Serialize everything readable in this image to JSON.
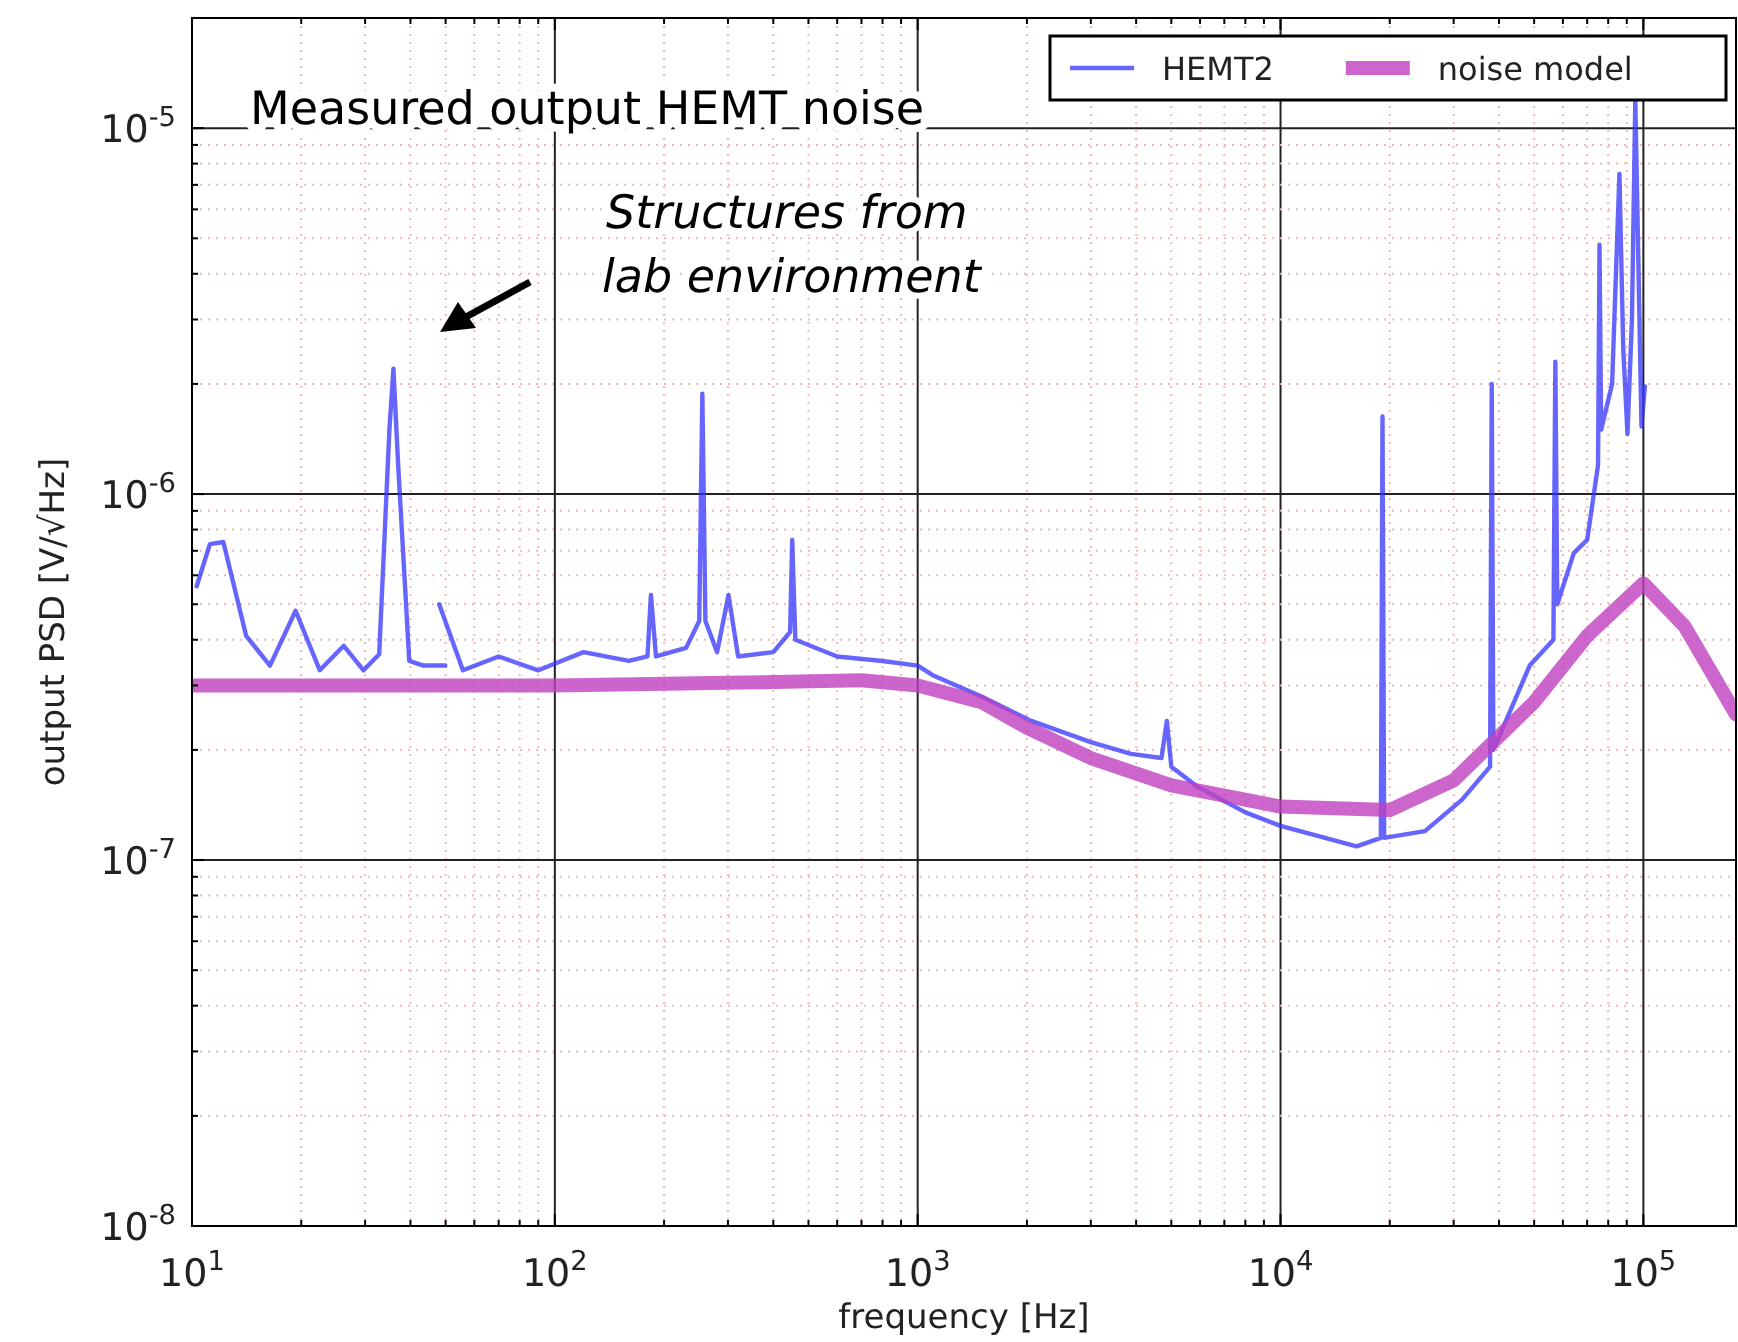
{
  "chart_data": {
    "type": "line",
    "xlabel": "frequency [Hz]",
    "ylabel": "output PSD [V/√Hz]",
    "log": "xy",
    "grid": true,
    "legend": "top right",
    "xlim": [
      10,
      180000
    ],
    "ylim": [
      1e-08,
      2e-05
    ],
    "xticks": [
      {
        "value": 10,
        "label": "10$^{1}$"
      },
      {
        "value": 20,
        "label": null
      },
      {
        "value": 30,
        "label": null
      },
      {
        "value": 40,
        "label": null
      },
      {
        "value": 50,
        "label": null
      },
      {
        "value": 60,
        "label": null
      },
      {
        "value": 70,
        "label": null
      },
      {
        "value": 80,
        "label": null
      },
      {
        "value": 90,
        "label": null
      },
      {
        "value": 100,
        "label": "10$^{2}$"
      },
      {
        "value": 200,
        "label": null
      },
      {
        "value": 300,
        "label": null
      },
      {
        "value": 400,
        "label": null
      },
      {
        "value": 500,
        "label": null
      },
      {
        "value": 600,
        "label": null
      },
      {
        "value": 700,
        "label": null
      },
      {
        "value": 800,
        "label": null
      },
      {
        "value": 900,
        "label": null
      },
      {
        "value": 1000,
        "label": "10$^{3}$"
      },
      {
        "value": 2000,
        "label": null
      },
      {
        "value": 3000,
        "label": null
      },
      {
        "value": 4000,
        "label": null
      },
      {
        "value": 5000,
        "label": null
      },
      {
        "value": 6000,
        "label": null
      },
      {
        "value": 7000,
        "label": null
      },
      {
        "value": 8000,
        "label": null
      },
      {
        "value": 9000,
        "label": null
      },
      {
        "value": 10000,
        "label": "10$^{4}$"
      },
      {
        "value": 20000,
        "label": null
      },
      {
        "value": 30000,
        "label": null
      },
      {
        "value": 40000,
        "label": null
      },
      {
        "value": 50000,
        "label": null
      },
      {
        "value": 60000,
        "label": null
      },
      {
        "value": 70000,
        "label": null
      },
      {
        "value": 80000,
        "label": null
      },
      {
        "value": 90000,
        "label": null
      },
      {
        "value": 100000,
        "label": "10$^{5}$"
      }
    ],
    "yticks": [
      {
        "value": 1e-08,
        "label": "10$^{-8}$"
      },
      {
        "value": 2e-08,
        "label": null
      },
      {
        "value": 3e-08,
        "label": null
      },
      {
        "value": 4e-08,
        "label": null
      },
      {
        "value": 5e-08,
        "label": null
      },
      {
        "value": 6e-08,
        "label": null
      },
      {
        "value": 7e-08,
        "label": null
      },
      {
        "value": 8e-08,
        "label": null
      },
      {
        "value": 9e-08,
        "label": null
      },
      {
        "value": 1e-07,
        "label": "10$^{-7}$"
      },
      {
        "value": 2e-07,
        "label": null
      },
      {
        "value": 3e-07,
        "label": null
      },
      {
        "value": 4e-07,
        "label": null
      },
      {
        "value": 5e-07,
        "label": null
      },
      {
        "value": 6e-07,
        "label": null
      },
      {
        "value": 7e-07,
        "label": null
      },
      {
        "value": 8e-07,
        "label": null
      },
      {
        "value": 9e-07,
        "label": null
      },
      {
        "value": 1e-06,
        "label": "10$^{-6}$"
      },
      {
        "value": 2e-06,
        "label": null
      },
      {
        "value": 3e-06,
        "label": null
      },
      {
        "value": 4e-06,
        "label": null
      },
      {
        "value": 5e-06,
        "label": null
      },
      {
        "value": 6e-06,
        "label": null
      },
      {
        "value": 7e-06,
        "label": null
      },
      {
        "value": 8e-06,
        "label": null
      },
      {
        "value": 9e-06,
        "label": null
      },
      {
        "value": 1e-05,
        "label": "10$^{-5}$"
      }
    ],
    "annotations": [
      "Measured output HEMT noise",
      "Structures from\nlab environment"
    ],
    "series": [
      {
        "name": "HEMT2",
        "color": "#3333ff",
        "x": [
          10.3,
          11.2,
          12.2,
          14.1,
          16.4,
          19.3,
          22.5,
          26.2,
          29.7,
          32.8,
          35,
          35.9,
          37,
          39.7,
          43.4,
          49.9,
          49,
          48,
          55.8,
          70,
          90,
          120,
          160,
          180,
          184,
          190,
          230,
          250,
          255,
          260,
          280,
          301,
          320,
          400,
          445,
          451,
          460,
          600,
          800,
          1000,
          1100,
          1500,
          2056,
          3000,
          3870,
          4700,
          4860,
          5000,
          5880,
          8000,
          10000,
          16200,
          18900,
          19100,
          19300,
          25000,
          31600,
          37800,
          38200,
          38600,
          44000,
          48600,
          56500,
          57200,
          57900,
          64300,
          70000,
          75000,
          75700,
          76500,
          82000,
          85900,
          88000,
          90400,
          93000,
          95000,
          98800,
          101000
        ],
        "values": [
          5.6e-07,
          7.3e-07,
          7.4e-07,
          4.1e-07,
          3.4e-07,
          4.8e-07,
          3.3e-07,
          3.85e-07,
          3.3e-07,
          3.65e-07,
          1.5e-06,
          2.2e-06,
          1.2e-06,
          3.5e-07,
          3.4e-07,
          3.4e-07,
          null,
          5e-07,
          3.3e-07,
          3.6e-07,
          3.3e-07,
          3.7e-07,
          3.5e-07,
          3.6e-07,
          5.3e-07,
          3.6e-07,
          3.8e-07,
          4.5e-07,
          1.88e-06,
          4.5e-07,
          3.7e-07,
          5.3e-07,
          3.6e-07,
          3.7e-07,
          4.2e-07,
          7.5e-07,
          4e-07,
          3.6e-07,
          3.5e-07,
          3.4e-07,
          3.2e-07,
          2.8e-07,
          2.4e-07,
          2.1e-07,
          1.95e-07,
          1.9e-07,
          2.4e-07,
          1.8e-07,
          1.59e-07,
          1.35e-07,
          1.24e-07,
          1.09e-07,
          1.15e-07,
          1.63e-06,
          1.15e-07,
          1.2e-07,
          1.46e-07,
          1.8e-07,
          2e-06,
          2e-07,
          2.7e-07,
          3.4e-07,
          4e-07,
          2.3e-06,
          5e-07,
          6.9e-07,
          7.5e-07,
          1.2e-06,
          4.8e-06,
          1.5e-06,
          2e-06,
          7.5e-06,
          2.5e-06,
          1.46e-06,
          3e-06,
          1.2e-05,
          1.53e-06,
          1.97e-06
        ]
      },
      {
        "name": "noise model",
        "color": "#bf40bf",
        "x": [
          10,
          100,
          300,
          700,
          1000,
          1500,
          2000,
          3000,
          5000,
          10000,
          20000,
          30000,
          50000,
          70000,
          100000,
          130000,
          180000
        ],
        "values": [
          3e-07,
          3e-07,
          3.05e-07,
          3.1e-07,
          3e-07,
          2.7e-07,
          2.3e-07,
          1.9e-07,
          1.6e-07,
          1.4e-07,
          1.37e-07,
          1.65e-07,
          2.7e-07,
          4.1e-07,
          5.7e-07,
          4.35e-07,
          2.5e-07
        ]
      }
    ]
  }
}
